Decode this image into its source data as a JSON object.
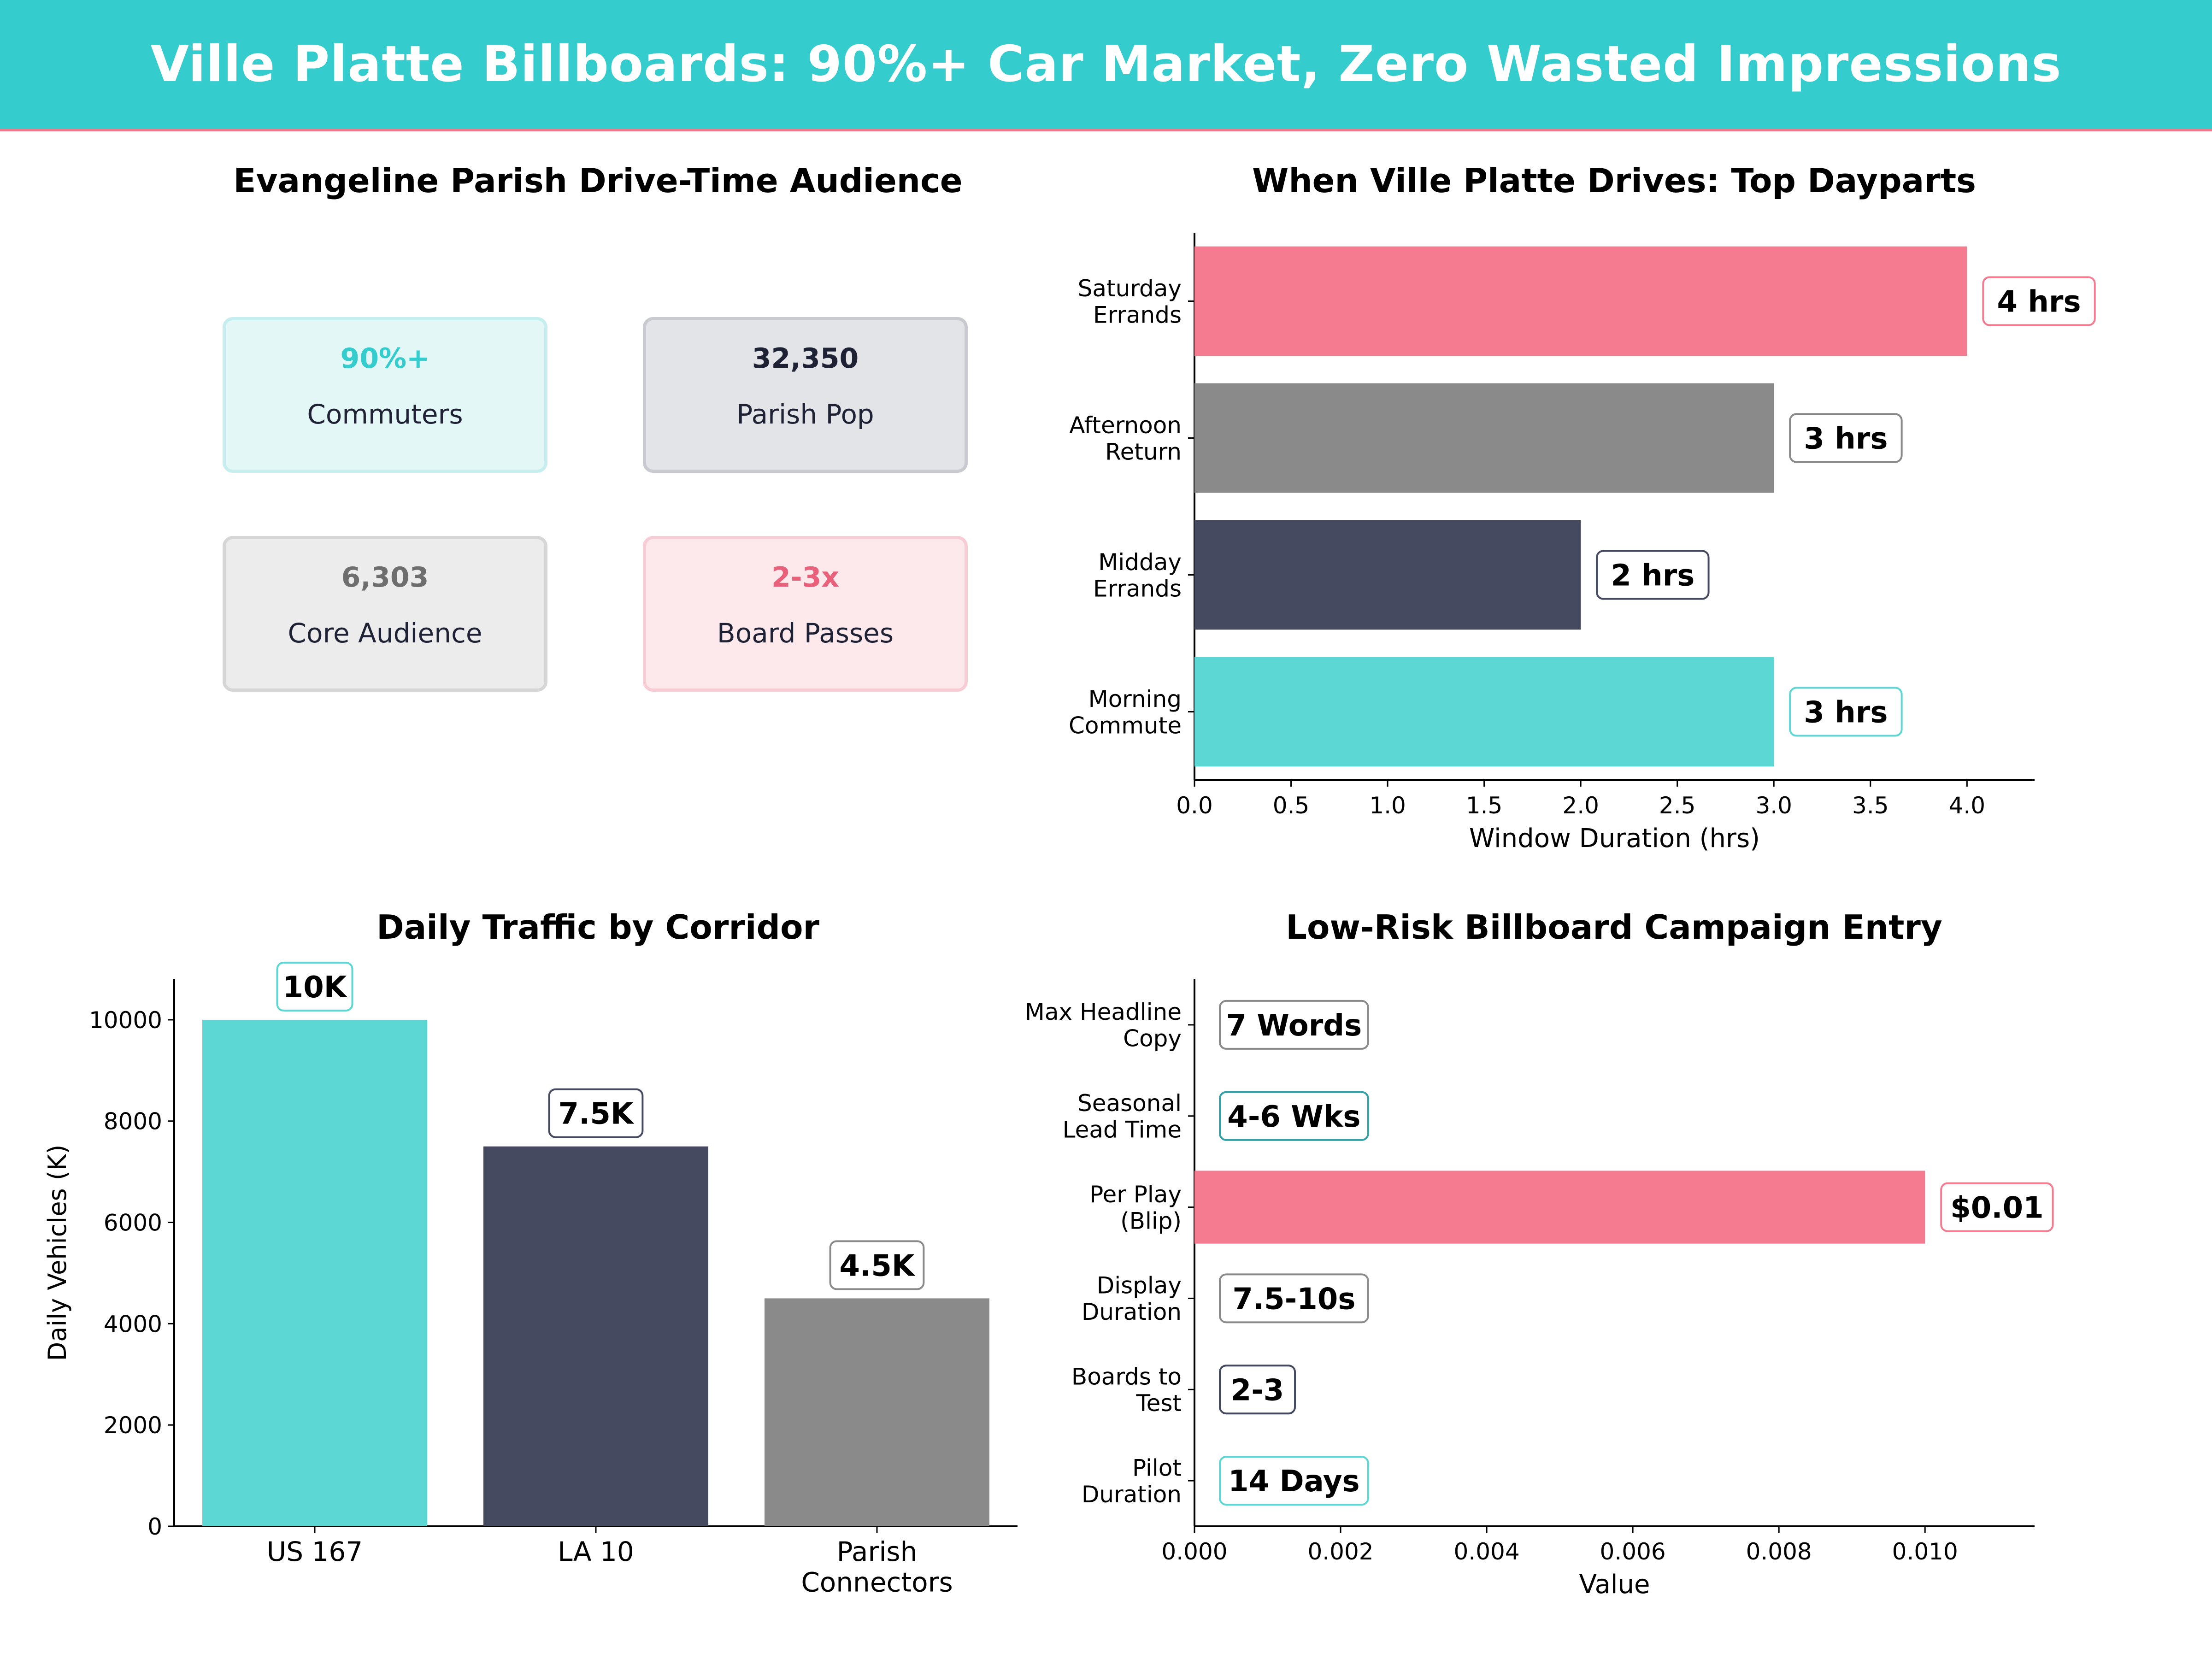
{
  "banner": {
    "title": "Ville Platte Billboards: 90%+ Car Market, Zero Wasted Impressions",
    "background": "#35cccd",
    "accent": "#f07a8c"
  },
  "audience_panel": {
    "title": "Evangeline Parish Drive-Time Audience",
    "cards": [
      {
        "value": "90%+",
        "label": "Commuters",
        "color": "#35cccd",
        "bg": "#e4f7f7",
        "border": "#c6eeee"
      },
      {
        "value": "32,350",
        "label": "Parish Pop",
        "color": "#1f2235",
        "bg": "#e3e4e8",
        "border": "#c9cad0"
      },
      {
        "value": "6,303",
        "label": "Core Audience",
        "color": "#6e6e6e",
        "bg": "#ececec",
        "border": "#d6d6d6"
      },
      {
        "value": "2-3x",
        "label": "Board Passes",
        "color": "#e8607a",
        "bg": "#fde8ec",
        "border": "#f8ccd5"
      }
    ]
  },
  "chart_data": [
    {
      "id": "dayparts",
      "type": "bar",
      "orientation": "horizontal",
      "title": "When Ville Platte Drives: Top Dayparts",
      "xlabel": "Window Duration (hrs)",
      "categories": [
        "Morning\nCommute",
        "Midday\nErrands",
        "Afternoon\nReturn",
        "Saturday\nErrands"
      ],
      "values": [
        3,
        2,
        3,
        4
      ],
      "data_labels": [
        "3 hrs",
        "2 hrs",
        "3 hrs",
        "4 hrs"
      ],
      "colors": [
        "#5cd7d4",
        "#454a60",
        "#8a8a8a",
        "#f57c90"
      ],
      "label_borders": [
        "#5cd7d4",
        "#454a60",
        "#8a8a8a",
        "#f57c90"
      ],
      "xlim": [
        0,
        4.35
      ],
      "xticks": [
        0.0,
        0.5,
        1.0,
        1.5,
        2.0,
        2.5,
        3.0,
        3.5,
        4.0
      ],
      "xtick_labels": [
        "0.0",
        "0.5",
        "1.0",
        "1.5",
        "2.0",
        "2.5",
        "3.0",
        "3.5",
        "4.0"
      ],
      "grid": false
    },
    {
      "id": "traffic",
      "type": "bar",
      "orientation": "vertical",
      "title": "Daily Traffic by Corridor",
      "ylabel": "Daily Vehicles (K)",
      "categories": [
        "US 167",
        "LA 10",
        "Parish\nConnectors"
      ],
      "values": [
        10000,
        7500,
        4500
      ],
      "data_labels": [
        "10K",
        "7.5K",
        "4.5K"
      ],
      "colors": [
        "#5cd7d4",
        "#454a60",
        "#8a8a8a"
      ],
      "label_borders": [
        "#5cd7d4",
        "#454a60",
        "#8a8a8a"
      ],
      "ylim": [
        0,
        10800
      ],
      "yticks": [
        0,
        2000,
        4000,
        6000,
        8000,
        10000
      ],
      "ytick_labels": [
        "0",
        "2000",
        "4000",
        "6000",
        "8000",
        "10000"
      ],
      "grid": false
    },
    {
      "id": "campaign",
      "type": "bar",
      "orientation": "horizontal",
      "title": "Low-Risk Billboard Campaign Entry",
      "xlabel": "Value",
      "categories": [
        "Pilot\nDuration",
        "Boards to\nTest",
        "Display\nDuration",
        "Per Play\n(Blip)",
        "Seasonal\nLead Time",
        "Max Headline\nCopy"
      ],
      "values": [
        0,
        0,
        0,
        0.01,
        0,
        0
      ],
      "data_labels": [
        "14 Days",
        "2-3",
        "7.5-10s",
        "$0.01",
        "4-6 Wks",
        "7 Words"
      ],
      "colors": [
        "#5cd7d4",
        "#454a60",
        "#8a8a8a",
        "#f57c90",
        "#35a0a5",
        "#8a8a8a"
      ],
      "label_borders": [
        "#5cd7d4",
        "#454a60",
        "#8a8a8a",
        "#f57c90",
        "#35a0a5",
        "#8a8a8a"
      ],
      "xlim": [
        0,
        0.0115
      ],
      "xticks": [
        0.0,
        0.002,
        0.004,
        0.006,
        0.008,
        0.01
      ],
      "xtick_labels": [
        "0.000",
        "0.002",
        "0.004",
        "0.006",
        "0.008",
        "0.010"
      ],
      "grid": false
    }
  ]
}
